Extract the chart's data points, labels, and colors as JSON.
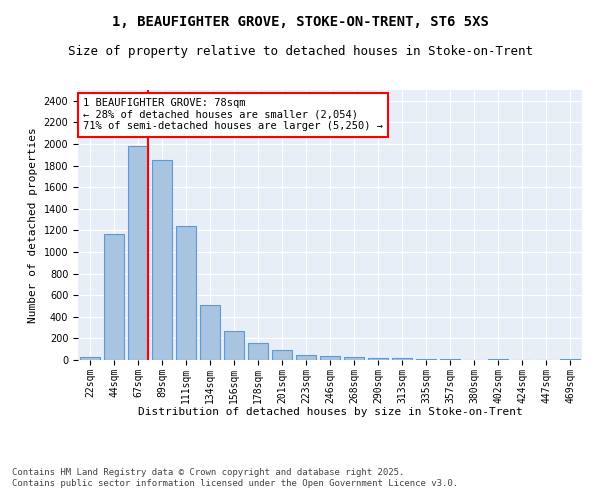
{
  "title_line1": "1, BEAUFIGHTER GROVE, STOKE-ON-TRENT, ST6 5XS",
  "title_line2": "Size of property relative to detached houses in Stoke-on-Trent",
  "xlabel": "Distribution of detached houses by size in Stoke-on-Trent",
  "ylabel": "Number of detached properties",
  "categories": [
    "22sqm",
    "44sqm",
    "67sqm",
    "89sqm",
    "111sqm",
    "134sqm",
    "156sqm",
    "178sqm",
    "201sqm",
    "223sqm",
    "246sqm",
    "268sqm",
    "290sqm",
    "313sqm",
    "335sqm",
    "357sqm",
    "380sqm",
    "402sqm",
    "424sqm",
    "447sqm",
    "469sqm"
  ],
  "values": [
    30,
    1170,
    1980,
    1850,
    1240,
    510,
    270,
    155,
    90,
    50,
    40,
    30,
    20,
    15,
    10,
    5,
    0,
    5,
    0,
    0,
    10
  ],
  "bar_color": "#a8c4e0",
  "bar_edge_color": "#5b9bd5",
  "annotation_text": "1 BEAUFIGHTER GROVE: 78sqm\n← 28% of detached houses are smaller (2,054)\n71% of semi-detached houses are larger (5,250) →",
  "annotation_box_color": "white",
  "annotation_box_edge_color": "red",
  "ylim": [
    0,
    2500
  ],
  "yticks": [
    0,
    200,
    400,
    600,
    800,
    1000,
    1200,
    1400,
    1600,
    1800,
    2000,
    2200,
    2400
  ],
  "background_color": "#e8eef7",
  "grid_color": "white",
  "footer_line1": "Contains HM Land Registry data © Crown copyright and database right 2025.",
  "footer_line2": "Contains public sector information licensed under the Open Government Licence v3.0.",
  "title_fontsize": 10,
  "subtitle_fontsize": 9,
  "axis_label_fontsize": 8,
  "tick_fontsize": 7,
  "annotation_fontsize": 7.5,
  "footer_fontsize": 6.5
}
